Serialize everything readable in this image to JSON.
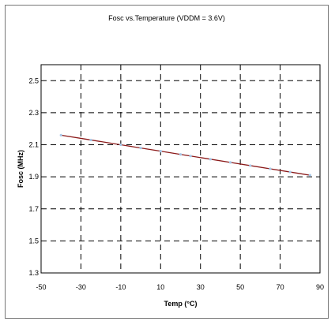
{
  "chart_data": {
    "type": "line",
    "title": "Fosc vs.Temperature (VDDM = 3.6V)",
    "xlabel": "Temp (°C)",
    "ylabel": "Fosc (MHz)",
    "xlim": [
      -50,
      90
    ],
    "ylim": [
      1.3,
      2.6
    ],
    "x_ticks": [
      -50,
      -30,
      -10,
      10,
      30,
      50,
      70,
      90
    ],
    "y_ticks": [
      1.3,
      1.5,
      1.7,
      1.9,
      2.1,
      2.3,
      2.5
    ],
    "x_tick_labels": [
      "-50",
      "-30",
      "-10",
      "10",
      "30",
      "50",
      "70",
      "90"
    ],
    "y_tick_labels": [
      "1.3",
      "1.5",
      "1.7",
      "1.9",
      "2.1",
      "2.3",
      "2.5"
    ],
    "grid": true,
    "series": [
      {
        "color": "#8b1a1a",
        "marker_color": "#a8c8e8",
        "x": [
          -40,
          -25,
          -10,
          0,
          10,
          20,
          25,
          35,
          45,
          55,
          65,
          75,
          85
        ],
        "y": [
          2.16,
          2.13,
          2.1,
          2.08,
          2.06,
          2.04,
          2.03,
          2.01,
          1.99,
          1.97,
          1.95,
          1.93,
          1.91
        ]
      }
    ]
  }
}
